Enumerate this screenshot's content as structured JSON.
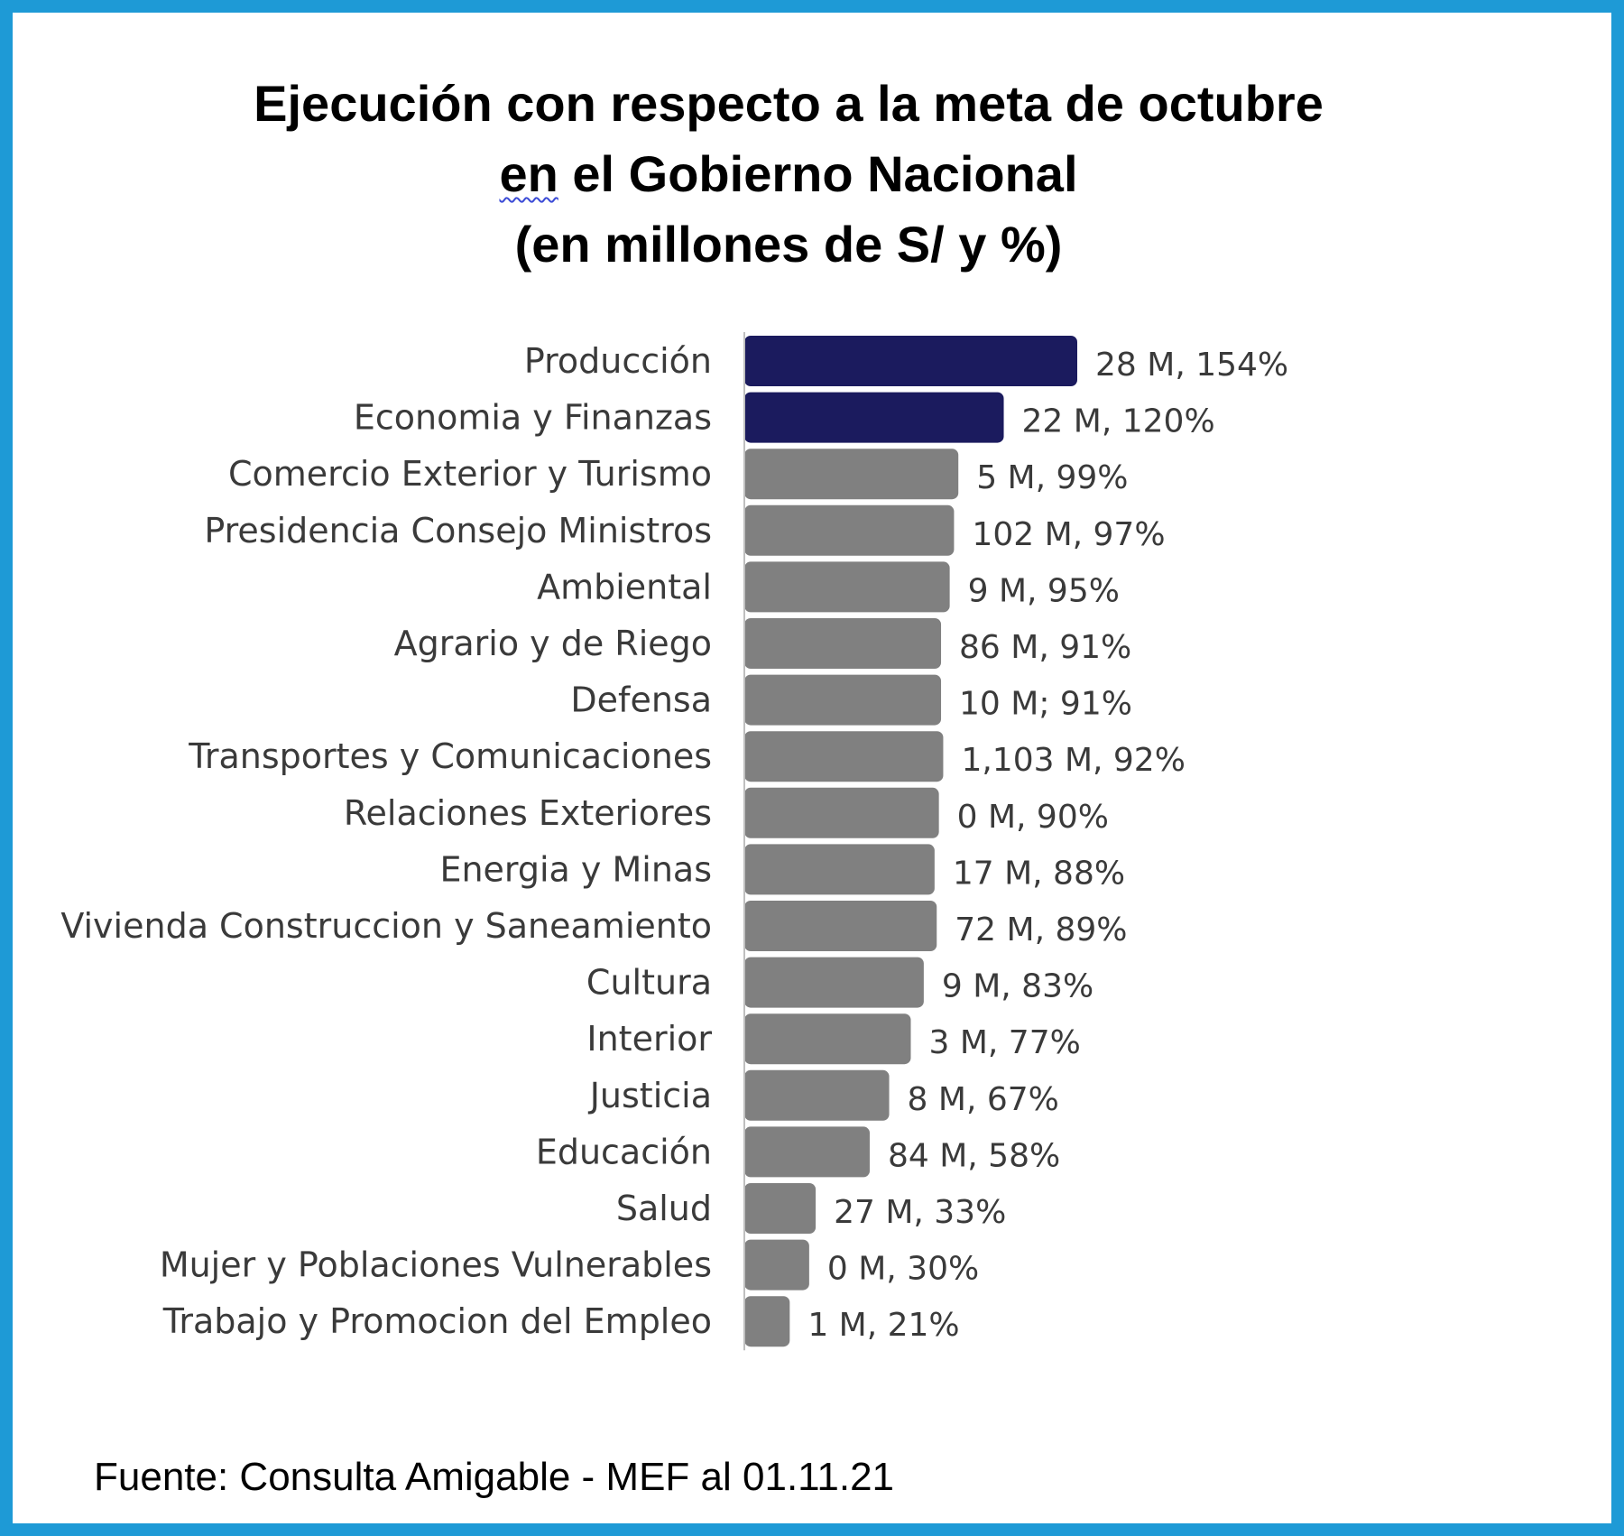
{
  "title": {
    "line1": "Ejecución con respecto a la meta de octubre",
    "line2_word1": "en",
    "line2_rest": " el Gobierno Nacional",
    "line3": "(en millones de S/ y %)"
  },
  "colors": {
    "border": "#1e9ad6",
    "highlight_bar": "#1b1b5e",
    "default_bar": "#808080"
  },
  "chart_data": {
    "type": "bar",
    "orientation": "horizontal",
    "categories": [
      "Producción",
      "Economia y Finanzas",
      "Comercio Exterior y Turismo",
      "Presidencia Consejo Ministros",
      "Ambiental",
      "Agrario y de Riego",
      "Defensa",
      "Transportes y Comunicaciones",
      "Relaciones Exteriores",
      "Energia y Minas",
      "Vivienda Construccion y Saneamiento",
      "Cultura",
      "Interior",
      "Justicia",
      "Educación",
      "Salud",
      "Mujer y Poblaciones Vulnerables",
      "Trabajo y Promocion del Empleo"
    ],
    "values": [
      154,
      120,
      99,
      97,
      95,
      91,
      91,
      92,
      90,
      88,
      89,
      83,
      77,
      67,
      58,
      33,
      30,
      21
    ],
    "data_labels": [
      "28 M, 154%",
      "22 M, 120%",
      "5 M, 99%",
      "102 M, 97%",
      "9 M, 95%",
      "86 M, 91%",
      "10 M; 91%",
      "1,103 M, 92%",
      "0 M, 90%",
      "17 M, 88%",
      "72 M, 89%",
      "9 M, 83%",
      "3 M, 77%",
      "8 M, 67%",
      "84 M, 58%",
      "27 M, 33%",
      "0 M, 30%",
      "1 M, 21%"
    ],
    "highlighted": [
      true,
      true,
      false,
      false,
      false,
      false,
      false,
      false,
      false,
      false,
      false,
      false,
      false,
      false,
      false,
      false,
      false,
      false
    ],
    "xlim": [
      0,
      154
    ],
    "grid": false,
    "legend": "none"
  },
  "source": "Fuente: Consulta Amigable - MEF al 01.11.21"
}
